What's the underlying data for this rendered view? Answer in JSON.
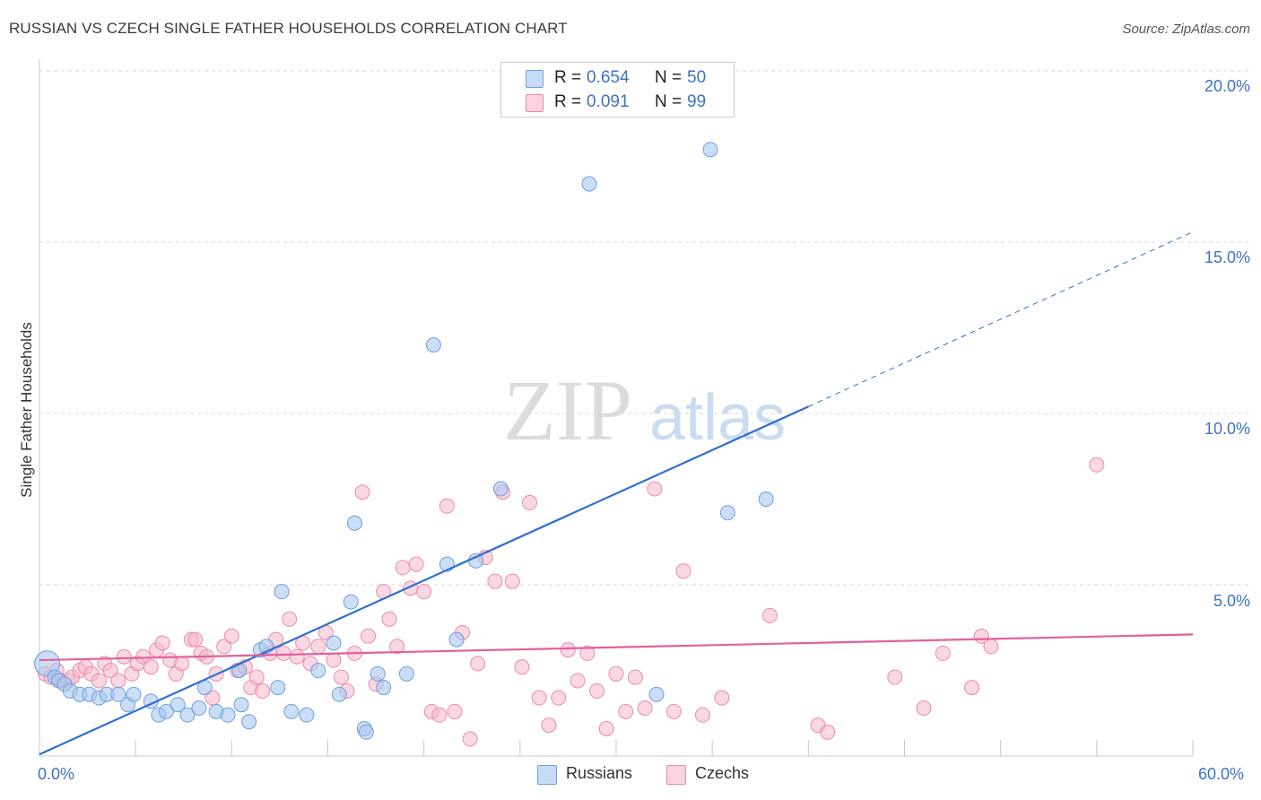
{
  "title": "RUSSIAN VS CZECH SINGLE FATHER HOUSEHOLDS CORRELATION CHART",
  "source": "Source: ZipAtlas.com",
  "watermark": {
    "zip": "ZIP",
    "atlas": "atlas"
  },
  "legend_top": [
    {
      "r_label": "R =",
      "r_value": "0.654",
      "n_label": "N =",
      "n_value": "50",
      "color": "#a9c8f0"
    },
    {
      "r_label": "R =",
      "r_value": "0.091",
      "n_label": "N =",
      "n_value": "99",
      "color": "#f6b8cc"
    }
  ],
  "legend_bottom": [
    {
      "label": "Russians",
      "color": "#a9c8f0"
    },
    {
      "label": "Czechs",
      "color": "#f6b8cc"
    }
  ],
  "colors": {
    "blue_point": "#a9c8f0",
    "blue_stroke": "#6f9fde",
    "blue_line": "#2f6fd0",
    "pink_point": "#f6b8cc",
    "pink_stroke": "#ec8aa8",
    "pink_line": "#e2609a",
    "tick_text": "#3a73c6",
    "grid": "#d9d9d9"
  },
  "chart_data": {
    "type": "scatter",
    "title": "RUSSIAN VS CZECH SINGLE FATHER HOUSEHOLDS CORRELATION CHART",
    "xlabel": "",
    "ylabel": "Single Father Households",
    "xlim": [
      0,
      60
    ],
    "ylim": [
      0,
      20
    ],
    "x_tick_labels": [
      "0.0%",
      "60.0%"
    ],
    "y_tick_labels": [
      "5.0%",
      "10.0%",
      "15.0%",
      "20.0%"
    ],
    "y_ticks": [
      5,
      10,
      15,
      20
    ],
    "grid": true,
    "legend_position": "top-center",
    "series": [
      {
        "name": "Russians",
        "r": 0.654,
        "n": 50,
        "trend": {
          "x0": 0,
          "y0": 0.05,
          "x1": 40,
          "y1": 10.2,
          "x_dash_end": 60,
          "y_dash_end": 15.3
        },
        "points": [
          [
            0.4,
            2.7
          ],
          [
            0.8,
            2.3
          ],
          [
            1.0,
            2.2
          ],
          [
            1.3,
            2.1
          ],
          [
            1.6,
            1.9
          ],
          [
            2.1,
            1.8
          ],
          [
            2.6,
            1.8
          ],
          [
            3.1,
            1.7
          ],
          [
            3.5,
            1.8
          ],
          [
            4.1,
            1.8
          ],
          [
            4.6,
            1.5
          ],
          [
            4.9,
            1.8
          ],
          [
            5.8,
            1.6
          ],
          [
            6.2,
            1.2
          ],
          [
            6.6,
            1.3
          ],
          [
            7.2,
            1.5
          ],
          [
            7.7,
            1.2
          ],
          [
            8.3,
            1.4
          ],
          [
            8.6,
            2.0
          ],
          [
            9.2,
            1.3
          ],
          [
            9.8,
            1.2
          ],
          [
            10.4,
            2.5
          ],
          [
            10.5,
            1.5
          ],
          [
            10.9,
            1.0
          ],
          [
            11.5,
            3.1
          ],
          [
            11.8,
            3.2
          ],
          [
            12.4,
            2.0
          ],
          [
            12.6,
            4.8
          ],
          [
            13.1,
            1.3
          ],
          [
            13.9,
            1.2
          ],
          [
            14.5,
            2.5
          ],
          [
            15.3,
            3.3
          ],
          [
            15.6,
            1.8
          ],
          [
            16.2,
            4.5
          ],
          [
            16.4,
            6.8
          ],
          [
            16.9,
            0.8
          ],
          [
            17.0,
            0.7
          ],
          [
            17.6,
            2.4
          ],
          [
            17.9,
            2.0
          ],
          [
            19.1,
            2.4
          ],
          [
            20.5,
            12.0
          ],
          [
            21.2,
            5.6
          ],
          [
            21.7,
            3.4
          ],
          [
            22.7,
            5.7
          ],
          [
            24.0,
            7.8
          ],
          [
            28.6,
            16.7
          ],
          [
            32.1,
            1.8
          ],
          [
            34.9,
            17.7
          ],
          [
            35.8,
            7.1
          ],
          [
            37.8,
            7.5
          ]
        ]
      },
      {
        "name": "Czechs",
        "r": 0.091,
        "n": 99,
        "trend": {
          "x0": 0,
          "y0": 2.8,
          "x1": 60,
          "y1": 3.55
        },
        "points": [
          [
            0.3,
            2.4
          ],
          [
            0.6,
            2.3
          ],
          [
            0.9,
            2.5
          ],
          [
            1.1,
            2.2
          ],
          [
            1.3,
            2.1
          ],
          [
            1.5,
            2.2
          ],
          [
            1.7,
            2.3
          ],
          [
            2.1,
            2.5
          ],
          [
            2.4,
            2.6
          ],
          [
            2.7,
            2.4
          ],
          [
            3.1,
            2.2
          ],
          [
            3.4,
            2.7
          ],
          [
            3.7,
            2.5
          ],
          [
            4.1,
            2.2
          ],
          [
            4.4,
            2.9
          ],
          [
            4.8,
            2.4
          ],
          [
            5.1,
            2.7
          ],
          [
            5.4,
            2.9
          ],
          [
            5.8,
            2.6
          ],
          [
            6.1,
            3.1
          ],
          [
            6.4,
            3.3
          ],
          [
            6.8,
            2.8
          ],
          [
            7.1,
            2.4
          ],
          [
            7.4,
            2.7
          ],
          [
            7.9,
            3.4
          ],
          [
            8.1,
            3.4
          ],
          [
            8.4,
            3.0
          ],
          [
            8.7,
            2.9
          ],
          [
            9.0,
            1.7
          ],
          [
            9.2,
            2.4
          ],
          [
            9.6,
            3.2
          ],
          [
            10.0,
            3.5
          ],
          [
            10.3,
            2.5
          ],
          [
            10.7,
            2.6
          ],
          [
            11.0,
            2.0
          ],
          [
            11.3,
            2.3
          ],
          [
            11.6,
            1.9
          ],
          [
            12.0,
            3.0
          ],
          [
            12.3,
            3.4
          ],
          [
            12.7,
            3.0
          ],
          [
            13.0,
            4.0
          ],
          [
            13.4,
            2.9
          ],
          [
            13.7,
            3.3
          ],
          [
            14.1,
            2.7
          ],
          [
            14.5,
            3.2
          ],
          [
            14.9,
            3.6
          ],
          [
            15.3,
            2.8
          ],
          [
            15.7,
            2.3
          ],
          [
            16.0,
            1.9
          ],
          [
            16.4,
            3.0
          ],
          [
            16.8,
            7.7
          ],
          [
            17.1,
            3.5
          ],
          [
            17.5,
            2.1
          ],
          [
            17.9,
            4.8
          ],
          [
            18.2,
            4.0
          ],
          [
            18.6,
            3.2
          ],
          [
            18.9,
            5.5
          ],
          [
            19.3,
            4.9
          ],
          [
            19.6,
            5.6
          ],
          [
            20.0,
            4.8
          ],
          [
            20.4,
            1.3
          ],
          [
            20.8,
            1.2
          ],
          [
            21.2,
            7.3
          ],
          [
            21.6,
            1.3
          ],
          [
            22.0,
            3.6
          ],
          [
            22.4,
            0.5
          ],
          [
            22.8,
            2.7
          ],
          [
            23.2,
            5.8
          ],
          [
            23.7,
            5.1
          ],
          [
            24.1,
            7.7
          ],
          [
            24.6,
            5.1
          ],
          [
            25.1,
            2.6
          ],
          [
            25.5,
            7.4
          ],
          [
            26.0,
            1.7
          ],
          [
            26.5,
            0.9
          ],
          [
            27.0,
            1.7
          ],
          [
            27.5,
            3.1
          ],
          [
            28.0,
            2.2
          ],
          [
            28.5,
            3.0
          ],
          [
            29.0,
            1.9
          ],
          [
            29.5,
            0.8
          ],
          [
            30.0,
            2.4
          ],
          [
            30.5,
            1.3
          ],
          [
            31.0,
            2.3
          ],
          [
            31.5,
            1.4
          ],
          [
            32.0,
            7.8
          ],
          [
            33.0,
            1.3
          ],
          [
            33.5,
            5.4
          ],
          [
            34.5,
            1.2
          ],
          [
            35.5,
            1.7
          ],
          [
            38.0,
            4.1
          ],
          [
            40.5,
            0.9
          ],
          [
            41.0,
            0.7
          ],
          [
            44.5,
            2.3
          ],
          [
            46.0,
            1.4
          ],
          [
            47.0,
            3.0
          ],
          [
            48.5,
            2.0
          ],
          [
            49.0,
            3.5
          ],
          [
            49.5,
            3.2
          ],
          [
            55.0,
            8.5
          ]
        ]
      }
    ]
  }
}
